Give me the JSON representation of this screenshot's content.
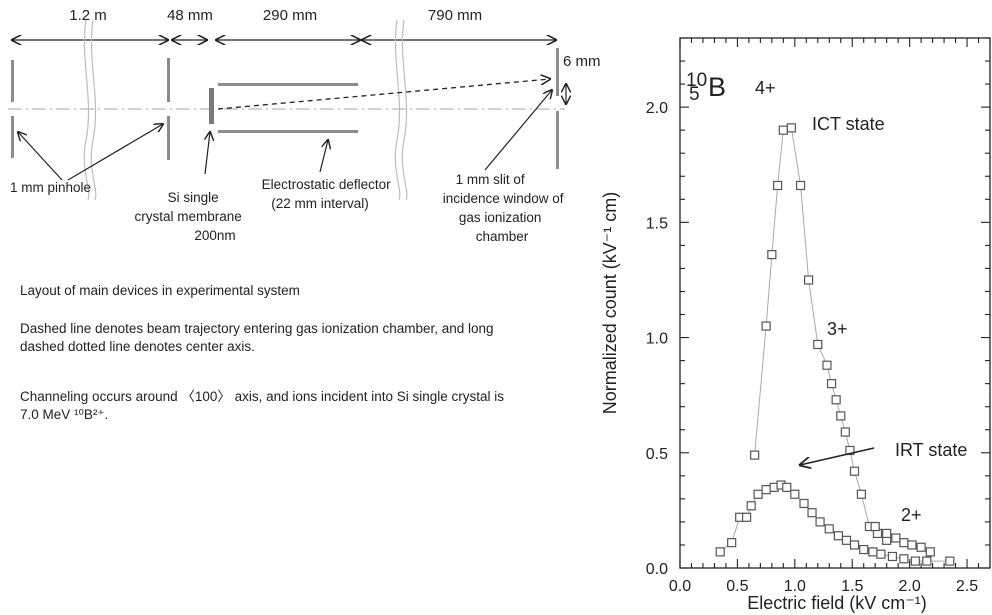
{
  "layout_diagram": {
    "dimensions": [
      "1.2 m",
      "48 mm",
      "290 mm",
      "790 mm"
    ],
    "gap_label": "6 mm",
    "labels": {
      "pinhole": "1 mm pinhole",
      "si_crystal": [
        "Si single",
        "crystal membrane",
        "200nm"
      ],
      "deflector": [
        "Electrostatic deflector",
        "(22 mm interval)"
      ],
      "slit": [
        "1 mm slit of",
        "incidence window of",
        "gas ionization",
        "chamber"
      ]
    }
  },
  "notes": {
    "layout": "Layout of main devices in experimental system",
    "dashed": "Dashed line denotes beam trajectory entering gas ionization chamber, and long dashed dotted line denotes center axis.",
    "channeling": "Channeling occurs around 〈100〉 axis, and ions incident into Si single crystal is 7.0 MeV ¹⁰B²⁺."
  },
  "chart_data": {
    "type": "scatter",
    "isotope": {
      "mass": "10",
      "atomic": "5",
      "symbol": "B"
    },
    "xlabel": "Electric field  (kV cm⁻¹)",
    "ylabel": "Normalized count  (kV⁻¹ cm)",
    "xlim": [
      0.0,
      2.7
    ],
    "ylim": [
      0.0,
      2.3
    ],
    "x_ticks": [
      "0.0",
      "0.5",
      "1.0",
      "1.5",
      "2.0",
      "2.5"
    ],
    "y_ticks": [
      "0.0",
      "0.5",
      "1.0",
      "1.5",
      "2.0"
    ],
    "annotations": [
      "4+",
      "3+",
      "2+",
      "ICT state",
      "IRT state"
    ],
    "series": [
      {
        "name": "ICT state",
        "x": [
          0.65,
          0.75,
          0.8,
          0.85,
          0.9,
          0.97,
          1.05,
          1.12,
          1.2,
          1.28,
          1.32,
          1.36,
          1.4,
          1.44,
          1.48,
          1.52,
          1.58,
          1.65,
          1.72,
          1.8
        ],
        "y": [
          0.49,
          1.05,
          1.36,
          1.66,
          1.9,
          1.91,
          1.66,
          1.25,
          0.97,
          0.88,
          0.8,
          0.73,
          0.66,
          0.59,
          0.51,
          0.42,
          0.32,
          0.18,
          0.15,
          0.12
        ]
      },
      {
        "name": "IRT state",
        "x": [
          0.35,
          0.45,
          0.52,
          0.58,
          0.62,
          0.68,
          0.75,
          0.82,
          0.88,
          0.93,
          1.0,
          1.08,
          1.15,
          1.22,
          1.3,
          1.38,
          1.45,
          1.52,
          1.6,
          1.68,
          1.75,
          1.85,
          1.95,
          2.05,
          2.15,
          2.35
        ],
        "y": [
          0.07,
          0.11,
          0.22,
          0.22,
          0.27,
          0.32,
          0.34,
          0.35,
          0.36,
          0.35,
          0.32,
          0.28,
          0.24,
          0.2,
          0.17,
          0.14,
          0.12,
          0.1,
          0.08,
          0.07,
          0.06,
          0.05,
          0.04,
          0.03,
          0.03,
          0.03
        ]
      },
      {
        "name": "2+",
        "x": [
          1.7,
          1.8,
          1.88,
          1.95,
          2.02,
          2.1,
          2.18
        ],
        "y": [
          0.18,
          0.15,
          0.13,
          0.11,
          0.1,
          0.09,
          0.07
        ]
      }
    ]
  }
}
